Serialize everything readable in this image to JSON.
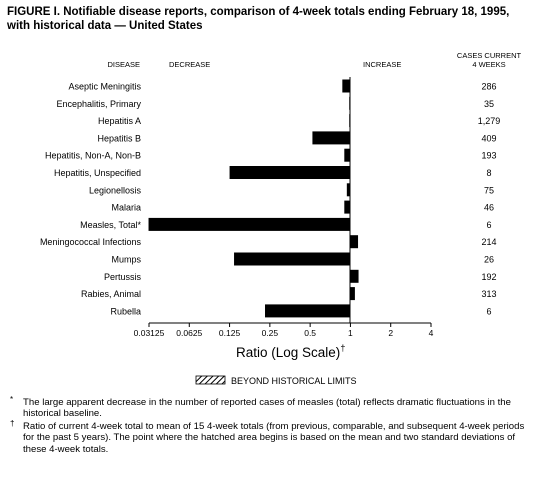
{
  "title": "FIGURE I. Notifiable disease reports, comparison of 4-week totals ending February 18, 1995, with historical data — United States",
  "chart_data": {
    "type": "bar",
    "orientation": "horizontal",
    "scale": "log2",
    "headers": {
      "disease": "DISEASE",
      "decrease": "DECREASE",
      "increase": "INCREASE",
      "cases_line1": "CASES CURRENT",
      "cases_line2": "4 WEEKS"
    },
    "categories": [
      "Aseptic Meningitis",
      "Encephalitis, Primary",
      "Hepatitis A",
      "Hepatitis B",
      "Hepatitis, Non-A, Non-B",
      "Hepatitis, Unspecified",
      "Legionellosis",
      "Malaria",
      "Measles, Total*",
      "Meningococcal Infections",
      "Mumps",
      "Pertussis",
      "Rabies, Animal",
      "Rubella"
    ],
    "values": [
      0.87,
      0.98,
      0.98,
      0.52,
      0.9,
      0.125,
      0.94,
      0.9,
      0.031,
      1.14,
      0.135,
      1.15,
      1.08,
      0.23
    ],
    "cases": [
      "286",
      "35",
      "1,279",
      "409",
      "193",
      "8",
      "75",
      "46",
      "6",
      "214",
      "26",
      "192",
      "313",
      "6"
    ],
    "x_ticks": [
      "0.03125",
      "0.0625",
      "0.125",
      "0.25",
      "0.5",
      "1",
      "2",
      "4"
    ],
    "x_tick_values": [
      0.03125,
      0.0625,
      0.125,
      0.25,
      0.5,
      1,
      2,
      4
    ],
    "xlim": [
      0.03125,
      4
    ],
    "xlabel": "Ratio (Log Scale)",
    "xlabel_mark": "†",
    "legend": "BEYOND HISTORICAL LIMITS"
  },
  "footnotes": [
    {
      "mark": "*",
      "text": "The large apparent decrease in the number of reported cases of measles (total) reflects dramatic fluctuations in the historical baseline."
    },
    {
      "mark": "†",
      "text": "Ratio of current 4-week total to mean of 15 4-week totals (from previous, comparable, and subsequent 4-week periods for the past 5 years). The point where the hatched area begins is based on the mean and two standard deviations of these 4-week totals."
    }
  ]
}
